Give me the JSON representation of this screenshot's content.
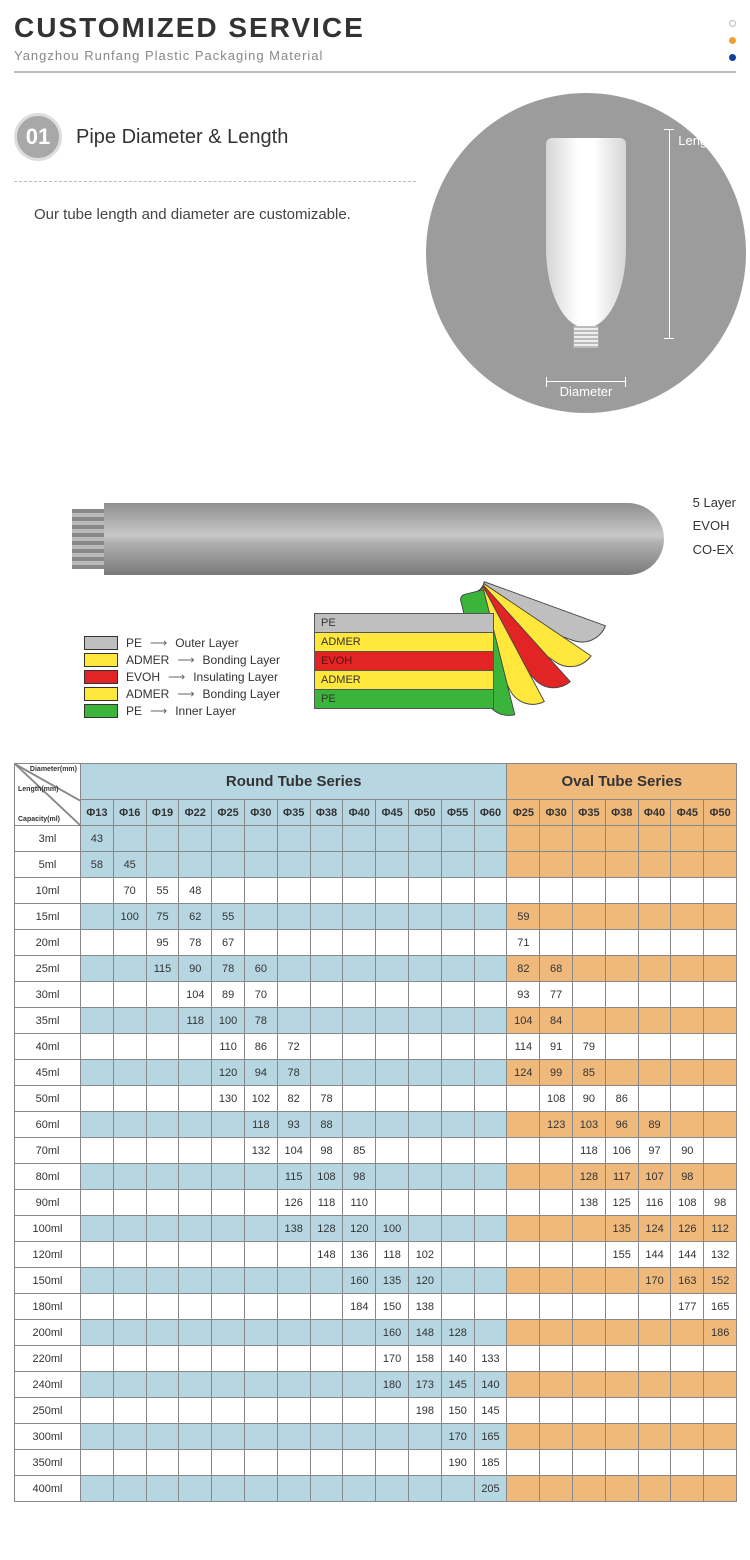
{
  "header": {
    "title": "CUSTOMIZED SERVICE",
    "subtitle": "Yangzhou Runfang Plastic Packaging Material",
    "dot_colors": [
      "#cccccc",
      "#f0a030",
      "#1040a0"
    ]
  },
  "section1": {
    "badge": "01",
    "title": "Pipe Diameter & Length",
    "desc": "Our tube length and diameter are customizable.",
    "dim_length": "Length",
    "dim_diameter": "Diameter"
  },
  "layer_diagram": {
    "side_labels": [
      "5 Layer",
      "EVOH",
      "CO-EX"
    ],
    "legend": [
      {
        "color": "#bfbfbf",
        "mat": "PE",
        "role": "Outer Layer"
      },
      {
        "color": "#ffe83b",
        "mat": "ADMER",
        "role": "Bonding Layer"
      },
      {
        "color": "#e32424",
        "mat": "EVOH",
        "role": "Insulating Layer"
      },
      {
        "color": "#ffe83b",
        "mat": "ADMER",
        "role": "Bonding Layer"
      },
      {
        "color": "#3bb43b",
        "mat": "PE",
        "role": "Inner Layer"
      }
    ],
    "block": [
      {
        "bg": "#bfbfbf",
        "txt": "PE"
      },
      {
        "bg": "#ffe83b",
        "txt": "ADMER"
      },
      {
        "bg": "#e32424",
        "txt": "EVOH",
        "fc": "#5a1010"
      },
      {
        "bg": "#ffe83b",
        "txt": "ADMER"
      },
      {
        "bg": "#3bb43b",
        "txt": "PE"
      }
    ]
  },
  "table": {
    "corner_labels": {
      "diam": "Diameter(mm)",
      "len": "Length(mm)",
      "cap": "Capacity(ml)"
    },
    "round_header": "Round Tube Series",
    "oval_header": "Oval Tube Series",
    "round_cols": [
      "Φ13",
      "Φ16",
      "Φ19",
      "Φ22",
      "Φ25",
      "Φ30",
      "Φ35",
      "Φ38",
      "Φ40",
      "Φ45",
      "Φ50",
      "Φ55",
      "Φ60"
    ],
    "oval_cols": [
      "Φ25",
      "Φ30",
      "Φ35",
      "Φ38",
      "Φ40",
      "Φ45",
      "Φ50"
    ],
    "colors": {
      "round_zebra": "#b6d6e2",
      "oval_zebra": "#f0b97c",
      "plain": "#ffffff",
      "border": "#888888"
    },
    "rows": [
      {
        "cap": "3ml",
        "zebra": true,
        "r": [
          "43",
          "",
          "",
          "",
          "",
          "",
          "",
          "",
          "",
          "",
          "",
          "",
          ""
        ],
        "o": [
          "",
          "",
          "",
          "",
          "",
          "",
          ""
        ]
      },
      {
        "cap": "5ml",
        "zebra": true,
        "r": [
          "58",
          "45",
          "",
          "",
          "",
          "",
          "",
          "",
          "",
          "",
          "",
          "",
          ""
        ],
        "o": [
          "",
          "",
          "",
          "",
          "",
          "",
          ""
        ]
      },
      {
        "cap": "10ml",
        "zebra": false,
        "r": [
          "",
          "70",
          "55",
          "48",
          "",
          "",
          "",
          "",
          "",
          "",
          "",
          "",
          ""
        ],
        "o": [
          "",
          "",
          "",
          "",
          "",
          "",
          ""
        ]
      },
      {
        "cap": "15ml",
        "zebra": true,
        "r": [
          "",
          "100",
          "75",
          "62",
          "55",
          "",
          "",
          "",
          "",
          "",
          "",
          "",
          ""
        ],
        "o": [
          "59",
          "",
          "",
          "",
          "",
          "",
          ""
        ]
      },
      {
        "cap": "20ml",
        "zebra": false,
        "r": [
          "",
          "",
          "95",
          "78",
          "67",
          "",
          "",
          "",
          "",
          "",
          "",
          "",
          ""
        ],
        "o": [
          "71",
          "",
          "",
          "",
          "",
          "",
          ""
        ]
      },
      {
        "cap": "25ml",
        "zebra": true,
        "r": [
          "",
          "",
          "115",
          "90",
          "78",
          "60",
          "",
          "",
          "",
          "",
          "",
          "",
          ""
        ],
        "o": [
          "82",
          "68",
          "",
          "",
          "",
          "",
          ""
        ]
      },
      {
        "cap": "30ml",
        "zebra": false,
        "r": [
          "",
          "",
          "",
          "104",
          "89",
          "70",
          "",
          "",
          "",
          "",
          "",
          "",
          ""
        ],
        "o": [
          "93",
          "77",
          "",
          "",
          "",
          "",
          ""
        ]
      },
      {
        "cap": "35ml",
        "zebra": true,
        "r": [
          "",
          "",
          "",
          "118",
          "100",
          "78",
          "",
          "",
          "",
          "",
          "",
          "",
          ""
        ],
        "o": [
          "104",
          "84",
          "",
          "",
          "",
          "",
          ""
        ]
      },
      {
        "cap": "40ml",
        "zebra": false,
        "r": [
          "",
          "",
          "",
          "",
          "110",
          "86",
          "72",
          "",
          "",
          "",
          "",
          "",
          ""
        ],
        "o": [
          "114",
          "91",
          "79",
          "",
          "",
          "",
          ""
        ]
      },
      {
        "cap": "45ml",
        "zebra": true,
        "r": [
          "",
          "",
          "",
          "",
          "120",
          "94",
          "78",
          "",
          "",
          "",
          "",
          "",
          ""
        ],
        "o": [
          "124",
          "99",
          "85",
          "",
          "",
          "",
          ""
        ]
      },
      {
        "cap": "50ml",
        "zebra": false,
        "r": [
          "",
          "",
          "",
          "",
          "130",
          "102",
          "82",
          "78",
          "",
          "",
          "",
          "",
          ""
        ],
        "o": [
          "",
          "108",
          "90",
          "86",
          "",
          "",
          ""
        ]
      },
      {
        "cap": "60ml",
        "zebra": true,
        "r": [
          "",
          "",
          "",
          "",
          "",
          "118",
          "93",
          "88",
          "",
          "",
          "",
          "",
          ""
        ],
        "o": [
          "",
          "123",
          "103",
          "96",
          "89",
          "",
          ""
        ]
      },
      {
        "cap": "70ml",
        "zebra": false,
        "r": [
          "",
          "",
          "",
          "",
          "",
          "132",
          "104",
          "98",
          "85",
          "",
          "",
          "",
          ""
        ],
        "o": [
          "",
          "",
          "118",
          "106",
          "97",
          "90",
          ""
        ]
      },
      {
        "cap": "80ml",
        "zebra": true,
        "r": [
          "",
          "",
          "",
          "",
          "",
          "",
          "115",
          "108",
          "98",
          "",
          "",
          "",
          ""
        ],
        "o": [
          "",
          "",
          "128",
          "117",
          "107",
          "98",
          ""
        ]
      },
      {
        "cap": "90ml",
        "zebra": false,
        "r": [
          "",
          "",
          "",
          "",
          "",
          "",
          "126",
          "118",
          "110",
          "",
          "",
          "",
          ""
        ],
        "o": [
          "",
          "",
          "138",
          "125",
          "116",
          "108",
          "98"
        ]
      },
      {
        "cap": "100ml",
        "zebra": true,
        "r": [
          "",
          "",
          "",
          "",
          "",
          "",
          "138",
          "128",
          "120",
          "100",
          "",
          "",
          ""
        ],
        "o": [
          "",
          "",
          "",
          "135",
          "124",
          "126",
          "112"
        ]
      },
      {
        "cap": "120ml",
        "zebra": false,
        "r": [
          "",
          "",
          "",
          "",
          "",
          "",
          "",
          "148",
          "136",
          "118",
          "102",
          "",
          ""
        ],
        "o": [
          "",
          "",
          "",
          "155",
          "144",
          "144",
          "132"
        ]
      },
      {
        "cap": "150ml",
        "zebra": true,
        "r": [
          "",
          "",
          "",
          "",
          "",
          "",
          "",
          "",
          "160",
          "135",
          "120",
          "",
          ""
        ],
        "o": [
          "",
          "",
          "",
          "",
          "170",
          "163",
          "152"
        ]
      },
      {
        "cap": "180ml",
        "zebra": false,
        "r": [
          "",
          "",
          "",
          "",
          "",
          "",
          "",
          "",
          "184",
          "150",
          "138",
          "",
          ""
        ],
        "o": [
          "",
          "",
          "",
          "",
          "",
          "177",
          "165"
        ]
      },
      {
        "cap": "200ml",
        "zebra": true,
        "r": [
          "",
          "",
          "",
          "",
          "",
          "",
          "",
          "",
          "",
          "160",
          "148",
          "128",
          ""
        ],
        "o": [
          "",
          "",
          "",
          "",
          "",
          "",
          "186"
        ]
      },
      {
        "cap": "220ml",
        "zebra": false,
        "r": [
          "",
          "",
          "",
          "",
          "",
          "",
          "",
          "",
          "",
          "170",
          "158",
          "140",
          "133"
        ],
        "o": [
          "",
          "",
          "",
          "",
          "",
          "",
          ""
        ]
      },
      {
        "cap": "240ml",
        "zebra": true,
        "r": [
          "",
          "",
          "",
          "",
          "",
          "",
          "",
          "",
          "",
          "180",
          "173",
          "145",
          "140"
        ],
        "o": [
          "",
          "",
          "",
          "",
          "",
          "",
          ""
        ]
      },
      {
        "cap": "250ml",
        "zebra": false,
        "r": [
          "",
          "",
          "",
          "",
          "",
          "",
          "",
          "",
          "",
          "",
          "198",
          "150",
          "145"
        ],
        "o": [
          "",
          "",
          "",
          "",
          "",
          "",
          ""
        ]
      },
      {
        "cap": "300ml",
        "zebra": true,
        "r": [
          "",
          "",
          "",
          "",
          "",
          "",
          "",
          "",
          "",
          "",
          "",
          "170",
          "165"
        ],
        "o": [
          "",
          "",
          "",
          "",
          "",
          "",
          ""
        ]
      },
      {
        "cap": "350ml",
        "zebra": false,
        "r": [
          "",
          "",
          "",
          "",
          "",
          "",
          "",
          "",
          "",
          "",
          "",
          "190",
          "185"
        ],
        "o": [
          "",
          "",
          "",
          "",
          "",
          "",
          ""
        ]
      },
      {
        "cap": "400ml",
        "zebra": true,
        "r": [
          "",
          "",
          "",
          "",
          "",
          "",
          "",
          "",
          "",
          "",
          "",
          "",
          "205"
        ],
        "o": [
          "",
          "",
          "",
          "",
          "",
          "",
          ""
        ]
      }
    ]
  }
}
